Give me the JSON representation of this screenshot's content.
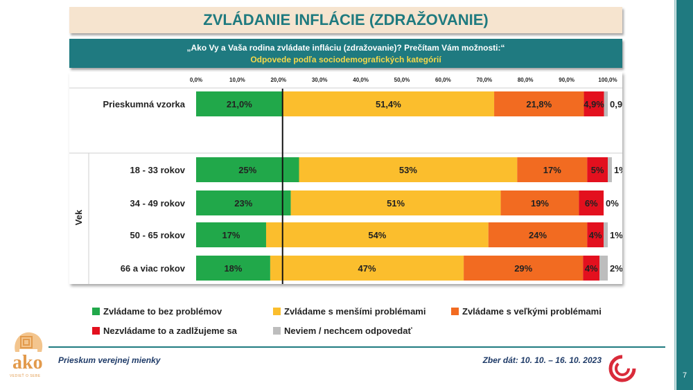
{
  "title": "ZVLÁDANIE INFLÁCIE (ZDRAŽOVANIE)",
  "question": "„Ako Vy a Vaša rodina zvládate infláciu (zdražovanie)? Prečítam Vám možnosti:“",
  "subtitle": "Odpovede podľa sociodemografických kategórií",
  "footer": {
    "survey": "Prieskum verejnej mienky",
    "date": "Zber dát: 10. 10. – 16. 10. 2023",
    "page": "7",
    "logo_text": "ako",
    "logo_sub": "VEDIEŤ O SEBE"
  },
  "colors": {
    "teal": "#1f7a80",
    "green": "#21a84a",
    "yellow": "#fbbe2d",
    "orange": "#f26b21",
    "red": "#e3101e",
    "gray": "#bdbdbd"
  },
  "chart_data": {
    "type": "bar",
    "orientation": "horizontal",
    "stacked": true,
    "xlim": [
      0,
      100
    ],
    "x_ticks": [
      "0,0%",
      "10,0%",
      "20,0%",
      "30,0%",
      "40,0%",
      "50,0%",
      "60,0%",
      "70,0%",
      "80,0%",
      "90,0%",
      "100,0%"
    ],
    "reference_line_value": 21.0,
    "group_label": "Vek",
    "categories": [
      "Prieskumná vzorka",
      "18 - 33 rokov",
      "34 - 49 rokov",
      "50 - 65 rokov",
      "66 a viac rokov"
    ],
    "series": [
      {
        "name": "Zvládame to bez problémov",
        "color": "#21a84a",
        "values": [
          21.0,
          25,
          23,
          17,
          18
        ],
        "labels": [
          "21,0%",
          "25%",
          "23%",
          "17%",
          "18%"
        ]
      },
      {
        "name": "Zvládame s menšími problémami",
        "color": "#fbbe2d",
        "values": [
          51.4,
          53,
          51,
          54,
          47
        ],
        "labels": [
          "51,4%",
          "53%",
          "51%",
          "54%",
          "47%"
        ]
      },
      {
        "name": "Zvládame s veľkými problémami",
        "color": "#f26b21",
        "values": [
          21.8,
          17,
          19,
          24,
          29
        ],
        "labels": [
          "21,8%",
          "17%",
          "19%",
          "24%",
          "29%"
        ]
      },
      {
        "name": "Nezvládame to a zadlžujeme sa",
        "color": "#e3101e",
        "values": [
          4.9,
          5,
          6,
          4,
          4
        ],
        "labels": [
          "4,9%",
          "5%",
          "6%",
          "4%",
          "4%"
        ]
      },
      {
        "name": "Neviem / nechcem odpovedať",
        "color": "#bdbdbd",
        "values": [
          0.9,
          1,
          0,
          1,
          2
        ],
        "labels": [
          "0,9%",
          "1%",
          "0%",
          "1%",
          "2%"
        ]
      }
    ]
  }
}
